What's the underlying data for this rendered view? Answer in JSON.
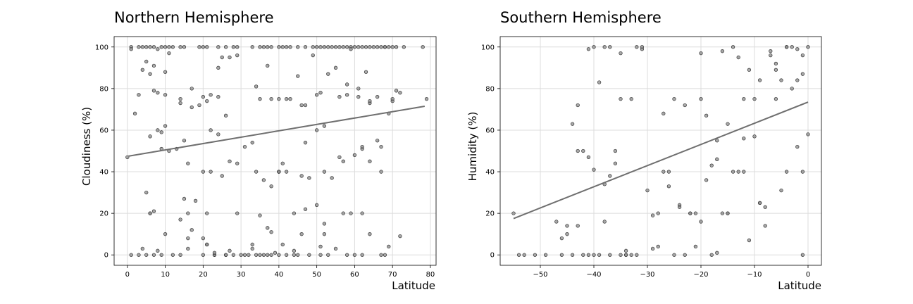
{
  "chart_data": [
    {
      "type": "scatter",
      "title": "Northern Hemisphere",
      "xlabel": "Latitude",
      "ylabel": "Cloudiness (%)",
      "xlim": [
        -3.5,
        81.5
      ],
      "ylim": [
        -5,
        105
      ],
      "xticks": [
        0,
        10,
        20,
        30,
        40,
        50,
        60,
        70,
        80
      ],
      "yticks": [
        0,
        20,
        40,
        60,
        80,
        100
      ],
      "grid": true,
      "regression_line": {
        "x": [
          0.3,
          78.5
        ],
        "y": [
          47.5,
          71.5
        ]
      },
      "point_color": "#8a8a8a",
      "line_color": "#6f6f6f",
      "series": [
        {
          "x": [
            1,
            1,
            3,
            4,
            5,
            6,
            7,
            8,
            9,
            10,
            11,
            12,
            14,
            15,
            19,
            20,
            21,
            24,
            26,
            28,
            29,
            33,
            35,
            36,
            37,
            38,
            40,
            41,
            42,
            43,
            45,
            47,
            49,
            50,
            51,
            52,
            53,
            54,
            55,
            56,
            57,
            58,
            59,
            60,
            61,
            62,
            63,
            64,
            65,
            66,
            67,
            68,
            69,
            70,
            71,
            73,
            78,
            3,
            5,
            6,
            7,
            8,
            10,
            11,
            14,
            17,
            22,
            24,
            25,
            34,
            37,
            42,
            43,
            46,
            47,
            50,
            53,
            56,
            58,
            59,
            61,
            63,
            64,
            66,
            68,
            70,
            72,
            2,
            4,
            7,
            9,
            10,
            14,
            17,
            19,
            21,
            24,
            27,
            29,
            35,
            38,
            40,
            45,
            49,
            51,
            55,
            58,
            61,
            64,
            70,
            71,
            5,
            6,
            8,
            10,
            13,
            15,
            20,
            22,
            24,
            26,
            31,
            33,
            36,
            40,
            41,
            47,
            50,
            52,
            57,
            60,
            62,
            67,
            79,
            0,
            6,
            9,
            11,
            16,
            18,
            20,
            22,
            25,
            27,
            29,
            34,
            38,
            40,
            42,
            46,
            48,
            52,
            54,
            56,
            62,
            66,
            69,
            6,
            7,
            15,
            17,
            20,
            21,
            23,
            28,
            33,
            35,
            37,
            40,
            44,
            46,
            52,
            57,
            59,
            62,
            64,
            67,
            5,
            10,
            14,
            16,
            21,
            26,
            29,
            33,
            36,
            38,
            40,
            41,
            44,
            47,
            50,
            52,
            64,
            69,
            72,
            1,
            3,
            4,
            7,
            9,
            14,
            16,
            20,
            23,
            26,
            30,
            31,
            32,
            34,
            37,
            38,
            40,
            42,
            45,
            48,
            51,
            53,
            60,
            68,
            8,
            12,
            16,
            21,
            23,
            27,
            35,
            39,
            44,
            51,
            55,
            58,
            62,
            67
          ],
          "y": [
            100,
            99,
            100,
            100,
            100,
            100,
            100,
            99,
            100,
            100,
            100,
            100,
            100,
            100,
            100,
            100,
            100,
            100,
            100,
            100,
            100,
            100,
            100,
            100,
            100,
            100,
            100,
            100,
            100,
            100,
            100,
            100,
            100,
            100,
            100,
            100,
            100,
            100,
            100,
            100,
            100,
            100,
            100,
            100,
            100,
            100,
            100,
            100,
            100,
            100,
            100,
            100,
            100,
            100,
            100,
            100,
            100,
            77,
            93,
            87,
            79,
            78,
            77,
            97,
            73,
            80,
            77,
            76,
            95,
            81,
            91,
            75,
            75,
            72,
            72,
            77,
            87,
            76,
            82,
            99,
            76,
            88,
            73,
            76,
            100,
            74,
            78,
            68,
            89,
            91,
            51,
            88,
            75,
            71,
            72,
            74,
            90,
            95,
            96,
            75,
            75,
            75,
            86,
            96,
            78,
            90,
            77,
            80,
            74,
            75,
            79,
            30,
            57,
            60,
            62,
            51,
            55,
            76,
            60,
            58,
            67,
            52,
            54,
            36,
            40,
            44,
            54,
            60,
            62,
            45,
            48,
            51,
            40,
            75,
            47,
            20,
            59,
            50,
            44,
            26,
            40,
            40,
            38,
            45,
            44,
            40,
            33,
            40,
            40,
            38,
            37,
            40,
            37,
            47,
            52,
            55,
            68,
            20,
            21,
            27,
            12,
            8,
            5,
            0,
            0,
            3,
            19,
            13,
            40,
            20,
            10,
            15,
            20,
            20,
            20,
            45,
            52,
            0,
            10,
            17,
            20,
            20,
            0,
            20,
            5,
            0,
            11,
            40,
            5,
            0,
            22,
            24,
            10,
            10,
            4,
            9,
            0,
            0,
            3,
            0,
            0,
            0,
            3,
            0,
            0,
            0,
            0,
            0,
            0,
            0,
            0,
            0,
            0,
            0,
            0,
            0,
            0,
            0,
            0,
            0,
            2,
            0,
            8,
            5,
            1,
            2,
            0,
            1,
            2,
            4,
            3,
            0,
            0,
            0
          ]
        }
      ]
    },
    {
      "type": "scatter",
      "title": "Southern Hemisphere",
      "xlabel": "Latitude",
      "ylabel": "Humidity (%)",
      "xlim": [
        -57.5,
        2.5
      ],
      "ylim": [
        -5,
        105
      ],
      "xticks": [
        -50,
        -40,
        -30,
        -20,
        -10,
        0
      ],
      "yticks": [
        0,
        20,
        40,
        60,
        80,
        100
      ],
      "grid": true,
      "regression_line": {
        "x": [
          -55,
          0
        ],
        "y": [
          17.5,
          73.5
        ]
      },
      "point_color": "#8a8a8a",
      "line_color": "#6f6f6f",
      "series": [
        {
          "x": [
            -55,
            -53,
            -51,
            -46,
            -45,
            -44,
            -43,
            -42,
            -41,
            -40,
            -39,
            -38,
            -37,
            -36,
            -35,
            -34,
            -33,
            -31,
            -28,
            -26,
            -24,
            -22,
            -20,
            -18,
            -16,
            -15,
            -14,
            -12,
            -10,
            -9,
            -8,
            -6,
            -5,
            -4,
            -3,
            -2,
            -1,
            0,
            -54,
            -49,
            -46,
            -44,
            -43,
            -41,
            -40,
            -38,
            -35,
            -33,
            -31,
            -29,
            -27,
            -25,
            -23,
            -21,
            -19,
            -17,
            -16,
            -13,
            -11,
            -9,
            -7,
            -5,
            -4,
            -2,
            -1,
            0,
            -45,
            -42,
            -39,
            -37,
            -34,
            -32,
            -28,
            -25,
            -22,
            -20,
            -18,
            -15,
            -13,
            -11,
            -8,
            -6,
            -4,
            -1,
            -41,
            -38,
            -36,
            -34,
            -30,
            -27,
            -24,
            -21,
            -19,
            -17,
            -14,
            -12,
            -10,
            -7,
            -3,
            -1,
            -47,
            -43,
            -40,
            -37,
            -35,
            -32,
            -29,
            -26,
            -23,
            -20,
            -17,
            -15,
            -12,
            -9,
            -6,
            -2
          ],
          "y": [
            20,
            0,
            0,
            0,
            14,
            63,
            72,
            0,
            99,
            0,
            0,
            100,
            100,
            44,
            0,
            0,
            0,
            99,
            20,
            40,
            24,
            20,
            75,
            0,
            20,
            20,
            100,
            40,
            75,
            25,
            14,
            89,
            31,
            40,
            100,
            52,
            40,
            100,
            0,
            0,
            8,
            0,
            50,
            47,
            100,
            34,
            97,
            75,
            100,
            3,
            40,
            0,
            0,
            4,
            67,
            1,
            98,
            95,
            7,
            25,
            96,
            84,
            100,
            99,
            96,
            58,
            10,
            50,
            83,
            0,
            0,
            0,
            4,
            75,
            20,
            16,
            43,
            20,
            40,
            89,
            23,
            92,
            100,
            0,
            0,
            16,
            50,
            2,
            31,
            68,
            23,
            20,
            36,
            46,
            40,
            56,
            57,
            98,
            80,
            87,
            16,
            14,
            41,
            38,
            75,
            100,
            19,
            33,
            72,
            97,
            55,
            63,
            75,
            84,
            75,
            84
          ]
        }
      ]
    }
  ]
}
